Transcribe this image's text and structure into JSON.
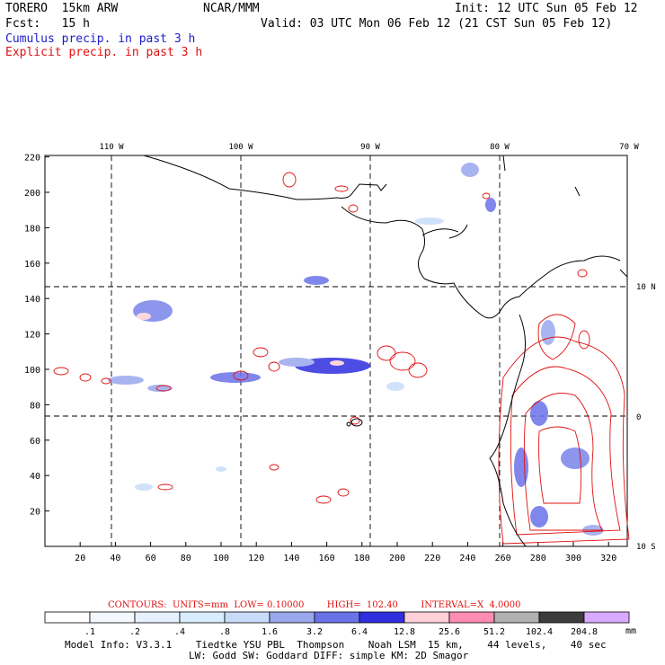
{
  "header": {
    "model": "TORERO  15km ARW",
    "org": "NCAR/MMM",
    "init": "Init: 12 UTC Sun 05 Feb 12",
    "fcst": "Fcst:   15 h",
    "valid": "Valid: 03 UTC Mon 06 Feb 12 (21 CST Sun 05 Feb 12)",
    "cumulus": "Cumulus precip. in past 3 h",
    "explicit": "Explicit precip. in past 3 h"
  },
  "map": {
    "lon_labels": [
      "110 W",
      "100 W",
      "90 W",
      "80 W",
      "70 W"
    ],
    "lat_labels": [
      "10 N",
      "0",
      "10 S"
    ],
    "x_ticks": [
      "20",
      "40",
      "60",
      "80",
      "100",
      "120",
      "140",
      "160",
      "180",
      "200",
      "220",
      "240",
      "260",
      "280",
      "300",
      "320"
    ],
    "y_ticks": [
      "20",
      "40",
      "60",
      "80",
      "100",
      "120",
      "140",
      "160",
      "180",
      "200",
      "220"
    ]
  },
  "colors": {
    "cumulus_text": "#1c1ccc",
    "explicit_text": "#e01010",
    "coast": "#000000",
    "explicit_contour": "#e01010"
  },
  "footer": {
    "contour_info": "CONTOURS:  UNITS=mm  LOW= 0.10000        HIGH=  102.40        INTERVAL=X  4.0000",
    "bar_labels": [
      ".1",
      ".2",
      ".4",
      ".8",
      "1.6",
      "3.2",
      "6.4",
      "12.8",
      "25.6",
      "51.2",
      "102.4",
      "204.8"
    ],
    "bar_unit": "mm",
    "bar_colors": [
      "#ffffff",
      "#f4f8ff",
      "#e6f1ff",
      "#d8eeff",
      "#c8dcfa",
      "#9aa8ee",
      "#6a72e8",
      "#2f2fe0",
      "#ffd0d8",
      "#ff8cb4",
      "#b0b0b0",
      "#3c3c3c",
      "#d8aaff"
    ],
    "model_info": "Model Info: V3.3.1    Tiedtke YSU PBL  Thompson    Noah LSM  15 km,    44 levels,    40 sec",
    "model_info2": "LW: Godd SW: Goddard DIFF: simple KM: 2D Smagor"
  }
}
